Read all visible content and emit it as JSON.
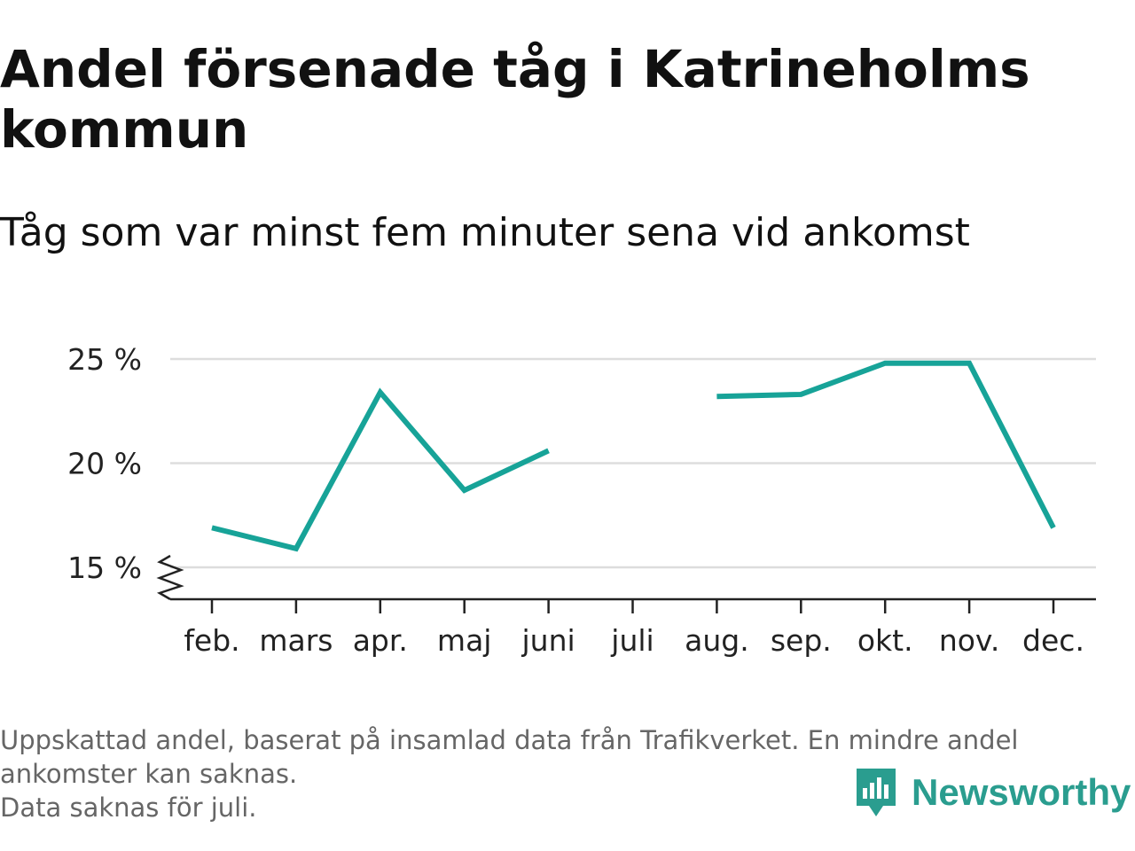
{
  "header": {
    "title_line1": "Andel försenade tåg i Katrineholms",
    "title_line2": "kommun",
    "subtitle": "Tåg som var minst fem minuter sena vid ankomst"
  },
  "chart_data": {
    "type": "line",
    "title": "Andel försenade tåg i Katrineholms kommun",
    "subtitle": "Tåg som var minst fem minuter sena vid ankomst",
    "categories": [
      "feb.",
      "mars",
      "apr.",
      "maj",
      "juni",
      "juli",
      "aug.",
      "sep.",
      "okt.",
      "nov.",
      "dec."
    ],
    "series": [
      {
        "values": [
          16.9,
          15.9,
          23.4,
          18.7,
          20.6,
          null,
          23.2,
          23.3,
          24.8,
          24.8,
          16.9
        ]
      }
    ],
    "yticks": [
      15,
      20,
      25
    ],
    "ytick_labels": [
      "15 %",
      "20 %",
      "25 %"
    ],
    "ylim": [
      15,
      25
    ],
    "grid": true,
    "legend": "none",
    "line_color": "#17a398",
    "broken_axis": true
  },
  "footer": {
    "note_line1": "Uppskattad andel, baserat på insamlad data från Trafikverket. En mindre andel",
    "note_line2": "ankomster kan saknas.",
    "note_line3": "Data saknas för juli.",
    "brand": "Newsworthy",
    "brand_icon": "newsworthy-logo-icon",
    "brand_color": "#2a9d8f"
  }
}
